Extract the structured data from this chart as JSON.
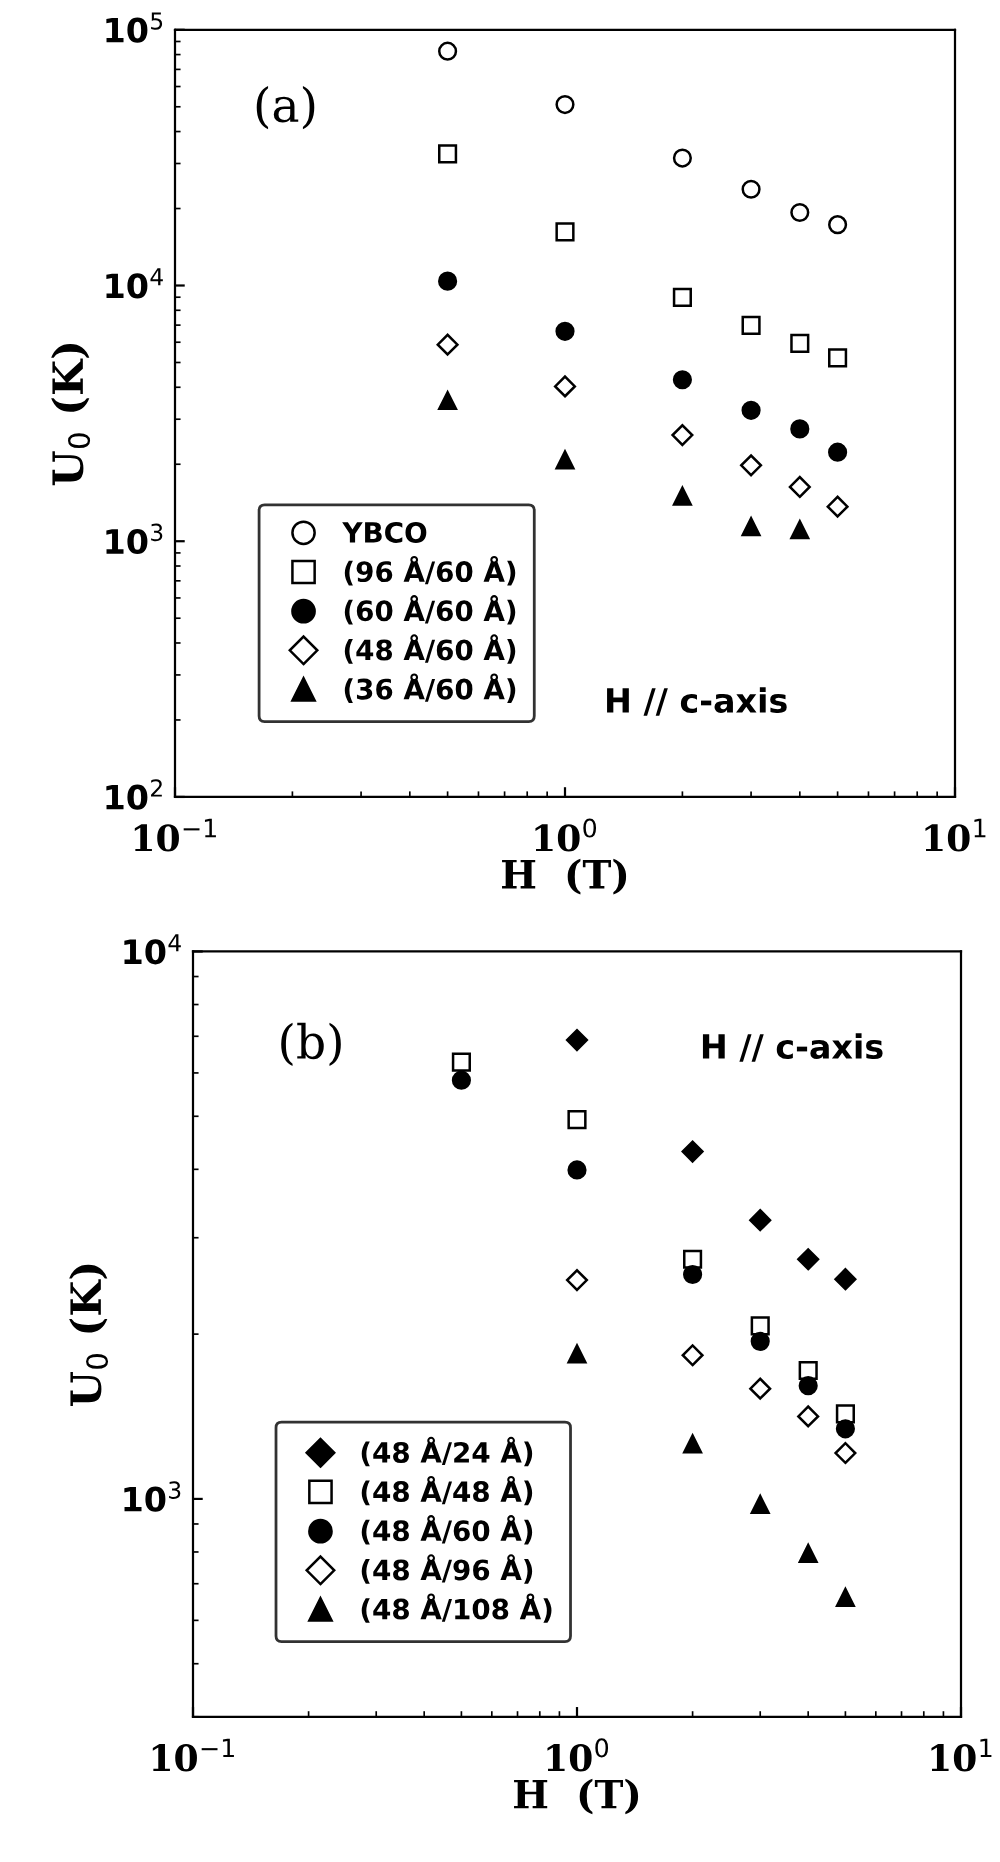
{
  "chart_data": [
    {
      "type": "scatter",
      "xlabel": "H  (T)",
      "ylabel": "U$_{0}$ (K)",
      "log": "xy",
      "legend": "lower left",
      "grid": false,
      "x": [
        0.5,
        1,
        2,
        3,
        4,
        5
      ],
      "xlim": [
        0.1,
        10
      ],
      "xticks": [
        {
          "value": 0.1,
          "label": "10$^{−1}$"
        },
        {
          "value": 1,
          "label": "10$^{0}$"
        },
        {
          "value": 10,
          "label": "10$^{1}$"
        }
      ],
      "ylim": [
        100,
        100000
      ],
      "yticks": [
        {
          "value": 100,
          "label": "10$^{2}$"
        },
        {
          "value": 1000,
          "label": "10$^{3}$"
        },
        {
          "value": 10000,
          "label": "10$^{4}$"
        },
        {
          "value": 100000,
          "label": "10$^{5}$"
        }
      ],
      "annotations": [
        "(a)",
        "H // c-axis"
      ],
      "series": [
        {
          "name": "YBCO",
          "color": "#ffffff",
          "marker": "circle",
          "values": [
            82500,
            51000,
            31500,
            23800,
            19300,
            17300
          ]
        },
        {
          "name": "(96 Å/60 Å)",
          "color": "#ffffff",
          "marker": "square",
          "values": [
            32700,
            16200,
            8980,
            6980,
            5940,
            5210
          ]
        },
        {
          "name": "(60 Å/60 Å)",
          "color": "#000000",
          "marker": "circle",
          "values": [
            10400,
            6620,
            4280,
            3250,
            2750,
            2230
          ]
        },
        {
          "name": "(48 Å/60 Å)",
          "color": "#ffffff",
          "marker": "diamond",
          "values": [
            5870,
            4030,
            2600,
            1980,
            1630,
            1365
          ]
        },
        {
          "name": "(36 Å/60 Å)",
          "color": "#000000",
          "marker": "triangle",
          "values": [
            3550,
            2080,
            1500,
            1140,
            1110,
            null
          ]
        }
      ]
    },
    {
      "type": "scatter",
      "xlabel": "H  (T)",
      "ylabel": "U$_{0}$ (K)",
      "log": "xy",
      "legend": "lower left",
      "grid": false,
      "x": [
        0.5,
        1,
        2,
        3,
        4,
        5
      ],
      "xlim": [
        0.1,
        10
      ],
      "xticks": [
        {
          "value": 0.1,
          "label": "10$^{−1}$"
        },
        {
          "value": 1,
          "label": "10$^{0}$"
        },
        {
          "value": 10,
          "label": "10$^{1}$"
        }
      ],
      "ylim": [
        400,
        10000
      ],
      "yticks": [
        {
          "value": 1000,
          "label": "10$^{3}$"
        },
        {
          "value": 10000,
          "label": "10$^{4}$"
        }
      ],
      "annotations": [
        "(b)",
        "H // c-axis"
      ],
      "series": [
        {
          "name": "(48 Å/24 Å)",
          "color": "#000000",
          "marker": "diamond",
          "values": [
            null,
            6890,
            4310,
            3230,
            2740,
            2520
          ]
        },
        {
          "name": "(48 Å/48 Å)",
          "color": "#ffffff",
          "marker": "square",
          "values": [
            6280,
            4930,
            2740,
            2070,
            1716,
            1430
          ]
        },
        {
          "name": "(48 Å/60 Å)",
          "color": "#000000",
          "marker": "circle",
          "values": [
            5820,
            3990,
            2570,
            1940,
            1610,
            1343
          ]
        },
        {
          "name": "(48 Å/96 Å)",
          "color": "#ffffff",
          "marker": "diamond",
          "values": [
            null,
            2510,
            1830,
            1590,
            1415,
            1213
          ]
        },
        {
          "name": "(48 Å/108 Å)",
          "color": "#000000",
          "marker": "triangle",
          "values": [
            null,
            1840,
            1260,
            977,
            795,
            661
          ]
        }
      ]
    }
  ]
}
